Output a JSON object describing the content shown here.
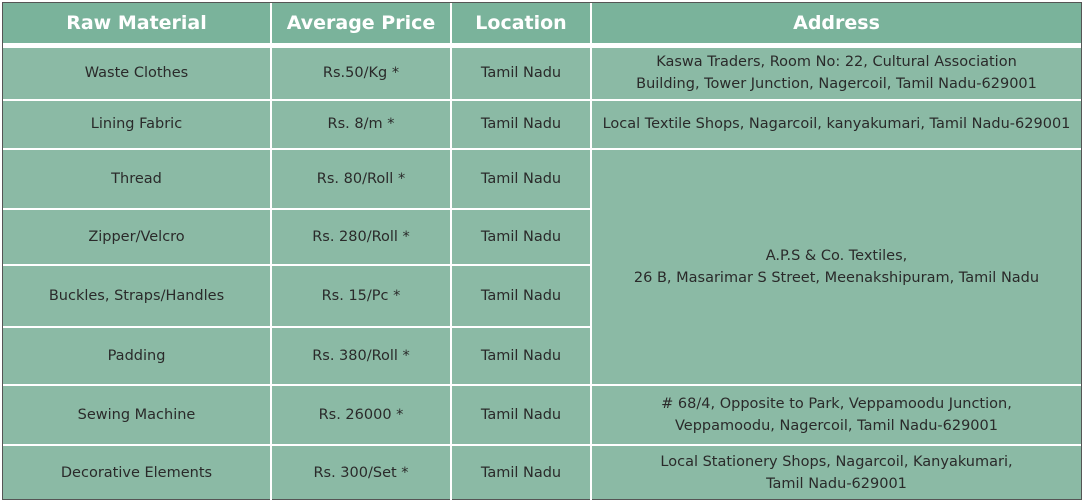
{
  "table": {
    "header": [
      "Raw Material",
      "Average Price",
      "Location",
      "Address"
    ],
    "rows": [
      [
        "Waste Clothes",
        "Rs.50/Kg *",
        "Tamil Nadu",
        [
          "Kaswa Traders, Room No: 22, Cultural Association",
          "Building, Tower Junction, Nagercoil, Tamil Nadu-629001"
        ]
      ],
      [
        "Lining Fabric",
        "Rs. 8/m *",
        "Tamil Nadu",
        [
          "Local Textile Shops, Nagarcoil, kanyakumari, Tamil Nadu-629001"
        ]
      ],
      [
        "Thread",
        "Rs. 80/Roll *",
        "Tamil Nadu",
        [
          "A.P.S & Co. Textiles,",
          "26 B, Masarimar S Street, Meenakshipuram, Tamil Nadu"
        ]
      ],
      [
        "Zipper/Velcro",
        "Rs. 280/Roll *",
        "Tamil Nadu"
      ],
      [
        "Buckles, Straps/Handles",
        "Rs. 15/Pc *",
        "Tamil Nadu"
      ],
      [
        "Padding",
        "Rs. 380/Roll *",
        "Tamil Nadu"
      ],
      [
        "Sewing Machine",
        "Rs. 26000 *",
        "Tamil Nadu",
        [
          "# 68/4, Opposite to Park, Veppamoodu Junction,",
          "Veppamoodu, Nagercoil, Tamil Nadu-629001"
        ]
      ],
      [
        "Decorative Elements",
        "Rs. 300/Set *",
        "Tamil Nadu",
        [
          "Local Stationery Shops, Nagarcoil, Kanyakumari,",
          "Tamil Nadu-629001"
        ]
      ]
    ]
  }
}
